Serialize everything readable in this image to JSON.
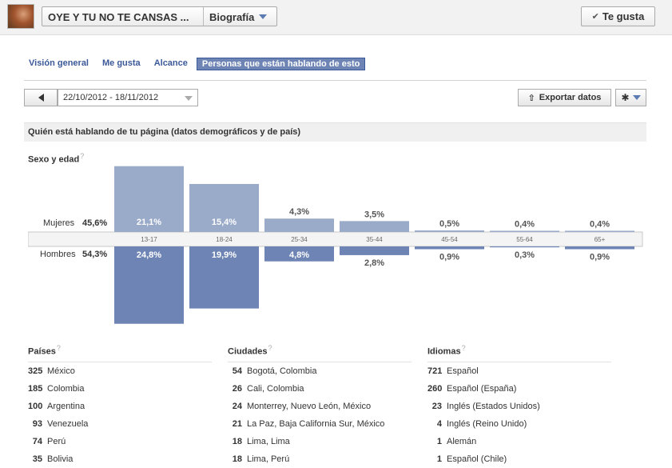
{
  "header": {
    "page_name": "OYE Y TU NO TE CANSAS ...",
    "view_label": "Biografía",
    "like_button": "Te gusta"
  },
  "tabs": [
    {
      "label": "Visión general"
    },
    {
      "label": "Me gusta"
    },
    {
      "label": "Alcance"
    },
    {
      "label": "Personas que están hablando de esto",
      "active": true
    }
  ],
  "controls": {
    "date_range": "22/10/2012 - 18/11/2012",
    "export_label": "Exportar datos"
  },
  "section": {
    "title": "Quién está hablando de tu página (datos demográficos y de país)",
    "subtitle": "Sexo y edad",
    "help_mark": "?",
    "women_label": "Mujeres",
    "women_total": "45,6%",
    "men_label": "Hombres",
    "men_total": "54,3%"
  },
  "chart_data": {
    "type": "bar",
    "categories": [
      "13-17",
      "18-24",
      "25-34",
      "35-44",
      "45-54",
      "55-64",
      "65+"
    ],
    "series": [
      {
        "name": "Mujeres",
        "values": [
          21.1,
          15.4,
          4.3,
          3.5,
          0.5,
          0.4,
          0.4
        ],
        "labels": [
          "21,1%",
          "15,4%",
          "4,3%",
          "3,5%",
          "0,5%",
          "0,4%",
          "0,4%"
        ],
        "color": "#9aaac9"
      },
      {
        "name": "Hombres",
        "values": [
          24.8,
          19.9,
          4.8,
          2.8,
          0.9,
          0.3,
          0.9
        ],
        "labels": [
          "24,8%",
          "19,9%",
          "4,8%",
          "2,8%",
          "0,9%",
          "0,3%",
          "0,9%"
        ],
        "color": "#6d84b4"
      }
    ]
  },
  "lists": {
    "countries": {
      "title": "Países",
      "items": [
        {
          "count": "325",
          "name": "México"
        },
        {
          "count": "185",
          "name": "Colombia"
        },
        {
          "count": "100",
          "name": "Argentina"
        },
        {
          "count": "93",
          "name": "Venezuela"
        },
        {
          "count": "74",
          "name": "Perú"
        },
        {
          "count": "35",
          "name": "Bolivia"
        }
      ]
    },
    "cities": {
      "title": "Ciudades",
      "items": [
        {
          "count": "54",
          "name": "Bogotá, Colombia"
        },
        {
          "count": "26",
          "name": "Cali, Colombia"
        },
        {
          "count": "24",
          "name": "Monterrey, Nuevo León, México"
        },
        {
          "count": "21",
          "name": "La Paz, Baja California Sur, México"
        },
        {
          "count": "18",
          "name": "Lima, Lima"
        },
        {
          "count": "18",
          "name": "Lima, Perú"
        }
      ]
    },
    "languages": {
      "title": "Idiomas",
      "items": [
        {
          "count": "721",
          "name": "Español"
        },
        {
          "count": "260",
          "name": "Español (España)"
        },
        {
          "count": "23",
          "name": "Inglés (Estados Unidos)"
        },
        {
          "count": "4",
          "name": "Inglés (Reino Unido)"
        },
        {
          "count": "1",
          "name": "Alemán"
        },
        {
          "count": "1",
          "name": "Español (Chile)"
        }
      ]
    }
  }
}
